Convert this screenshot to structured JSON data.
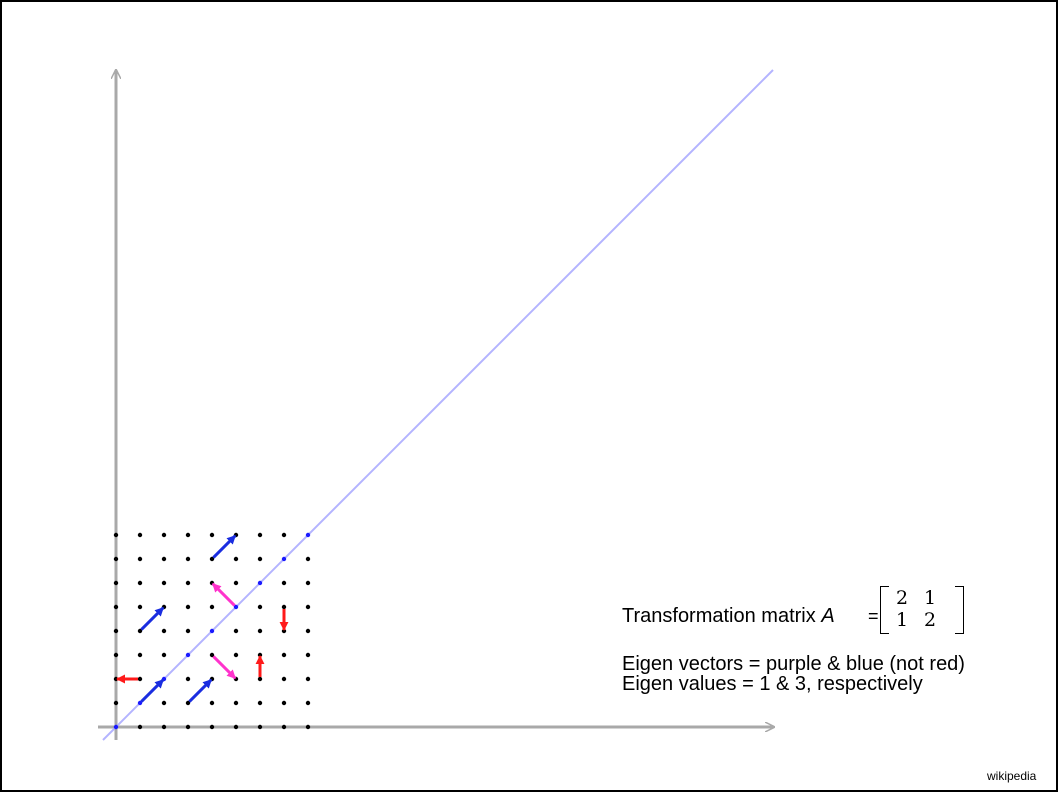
{
  "caption": {
    "matrix_label": "Transformation matrix",
    "matrix_symbol": "A",
    "equals": "=",
    "matrix": [
      [
        "2",
        "1"
      ],
      [
        "1",
        "2"
      ]
    ],
    "eigen_vectors_text": "Eigen vectors = purple & blue (not red)",
    "eigen_values_text": "Eigen values = 1 & 3, respectively"
  },
  "source": "wikipedia",
  "colors": {
    "axis": "#a9a9a9",
    "grid_dot": "#000000",
    "diagonal_dot": "#1a1aff",
    "diagonal_line": "#b4b4ff",
    "blue_vector": "#1a2de0",
    "purple_vector": "#ff33cc",
    "red_vector": "#ff1a1a"
  },
  "diagram": {
    "grid_size": 9,
    "vectors": [
      {
        "color": "blue",
        "from": [
          1,
          1
        ],
        "to": [
          2,
          2
        ]
      },
      {
        "color": "blue",
        "from": [
          3,
          1
        ],
        "to": [
          4,
          2
        ]
      },
      {
        "color": "blue",
        "from": [
          1,
          4
        ],
        "to": [
          2,
          5
        ]
      },
      {
        "color": "blue",
        "from": [
          4,
          7
        ],
        "to": [
          5,
          8
        ]
      },
      {
        "color": "purple",
        "from": [
          5,
          5
        ],
        "to": [
          4,
          6
        ]
      },
      {
        "color": "purple",
        "from": [
          4,
          3
        ],
        "to": [
          5,
          2
        ]
      },
      {
        "color": "red",
        "from": [
          1,
          2
        ],
        "to": [
          0,
          2
        ]
      },
      {
        "color": "red",
        "from": [
          6,
          2
        ],
        "to": [
          6,
          3
        ]
      },
      {
        "color": "red",
        "from": [
          7,
          5
        ],
        "to": [
          7,
          4
        ]
      }
    ]
  }
}
